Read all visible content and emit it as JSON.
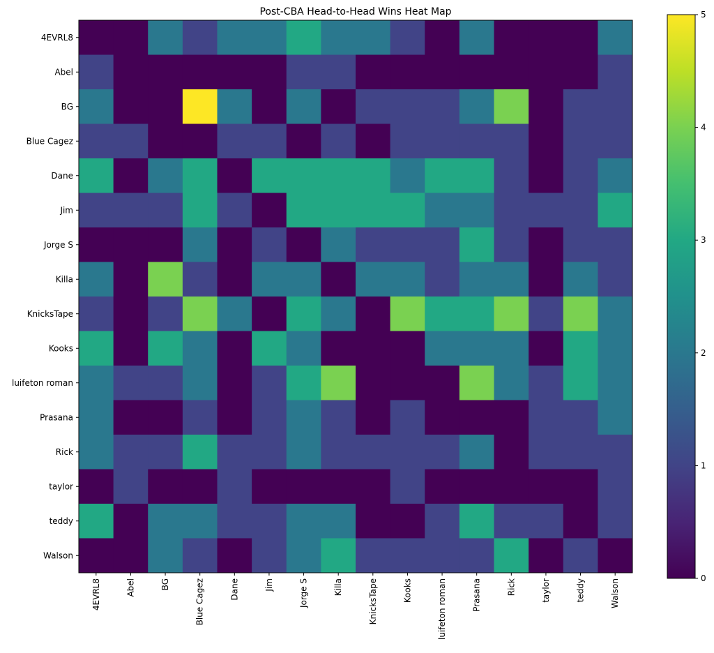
{
  "chart_data": {
    "type": "heatmap",
    "title": "Post-CBA Head-to-Head Wins Heat Map",
    "xlabel": "",
    "ylabel": "",
    "x_categories": [
      "4EVRL8",
      "Abel",
      "BG",
      "Blue Cagez",
      "Dane",
      "Jim",
      "Jorge S",
      "Killa",
      "KnicksTape",
      "Kooks",
      "luifeton roman",
      "Prasana",
      "Rick",
      "taylor",
      "teddy",
      "Walson"
    ],
    "y_categories": [
      "4EVRL8",
      "Abel",
      "BG",
      "Blue Cagez",
      "Dane",
      "Jim",
      "Jorge S",
      "Killa",
      "KnicksTape",
      "Kooks",
      "luifeton roman",
      "Prasana",
      "Rick",
      "taylor",
      "teddy",
      "Walson"
    ],
    "values": [
      [
        0,
        0,
        2,
        1,
        2,
        2,
        3,
        2,
        2,
        1,
        0,
        2,
        0,
        0,
        0,
        2
      ],
      [
        1,
        0,
        0,
        0,
        0,
        0,
        1,
        1,
        0,
        0,
        0,
        0,
        0,
        0,
        0,
        1
      ],
      [
        2,
        0,
        0,
        5,
        2,
        0,
        2,
        0,
        1,
        1,
        1,
        2,
        4,
        0,
        1,
        1
      ],
      [
        1,
        1,
        0,
        0,
        1,
        1,
        0,
        1,
        0,
        1,
        1,
        1,
        1,
        0,
        1,
        1
      ],
      [
        3,
        0,
        2,
        3,
        0,
        3,
        3,
        3,
        3,
        2,
        3,
        3,
        1,
        0,
        1,
        2
      ],
      [
        1,
        1,
        1,
        3,
        1,
        0,
        3,
        3,
        3,
        3,
        2,
        2,
        1,
        1,
        1,
        3
      ],
      [
        0,
        0,
        0,
        2,
        0,
        1,
        0,
        2,
        1,
        1,
        1,
        3,
        1,
        0,
        1,
        1
      ],
      [
        2,
        0,
        4,
        1,
        0,
        2,
        2,
        0,
        2,
        2,
        1,
        2,
        2,
        0,
        2,
        1
      ],
      [
        1,
        0,
        1,
        4,
        2,
        0,
        3,
        2,
        0,
        4,
        3,
        3,
        4,
        1,
        4,
        2
      ],
      [
        3,
        0,
        3,
        2,
        0,
        3,
        2,
        0,
        0,
        0,
        2,
        2,
        2,
        0,
        3,
        2
      ],
      [
        2,
        1,
        1,
        2,
        0,
        1,
        3,
        4,
        0,
        0,
        0,
        4,
        2,
        1,
        3,
        2
      ],
      [
        2,
        0,
        0,
        1,
        0,
        1,
        2,
        1,
        0,
        1,
        0,
        0,
        0,
        1,
        1,
        2
      ],
      [
        2,
        1,
        1,
        3,
        1,
        1,
        2,
        1,
        1,
        1,
        1,
        2,
        0,
        1,
        1,
        1
      ],
      [
        0,
        1,
        0,
        0,
        1,
        0,
        0,
        0,
        0,
        1,
        0,
        0,
        0,
        0,
        0,
        1
      ],
      [
        3,
        0,
        2,
        2,
        1,
        1,
        2,
        2,
        0,
        0,
        1,
        3,
        1,
        1,
        0,
        1
      ],
      [
        0,
        0,
        2,
        1,
        0,
        1,
        2,
        3,
        1,
        1,
        1,
        1,
        3,
        0,
        1,
        0
      ]
    ],
    "colormap": "viridis",
    "colorbar": {
      "min": 0,
      "max": 5,
      "ticks": [
        "0",
        "1",
        "2",
        "3",
        "4",
        "5"
      ]
    },
    "grid": false
  }
}
